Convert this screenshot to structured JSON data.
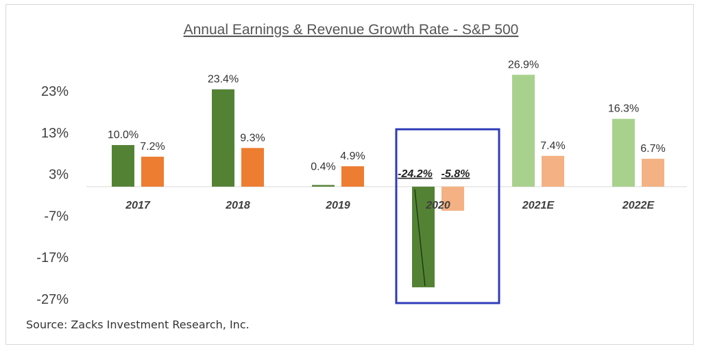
{
  "chart_data": {
    "type": "bar",
    "title": "Annual Earnings & Revenue Growth Rate - S&P 500",
    "categories": [
      "2017",
      "2018",
      "2019",
      "2020",
      "2021E",
      "2022E"
    ],
    "series": [
      {
        "values": [
          10.0,
          23.4,
          0.4,
          -24.2,
          26.9,
          16.3
        ],
        "labels": [
          "10.0%",
          "23.4%",
          "0.4%",
          "-24.2%",
          "26.9%",
          "16.3%"
        ],
        "color": "#548235",
        "estimate_color": "#a9d18e"
      },
      {
        "values": [
          7.2,
          9.3,
          4.9,
          -5.8,
          7.4,
          6.7
        ],
        "labels": [
          "7.2%",
          "9.3%",
          "4.9%",
          "-5.8%",
          "7.4%",
          "6.7%"
        ],
        "color": "#ed7d31",
        "estimate_color": "#f4b183"
      }
    ],
    "estimate_categories": [
      "2021E",
      "2022E"
    ],
    "highlighted_category": "2020",
    "highlight_color": "#2e3bb8",
    "yticks": [
      "23%",
      "13%",
      "3%",
      "-7%",
      "-17%",
      "-27%"
    ],
    "ytick_values": [
      23,
      13,
      3,
      -7,
      -17,
      -27
    ],
    "ylim": [
      -27,
      27
    ],
    "grid": false,
    "legend": "none",
    "source": "Source: Zacks Investment Research, Inc."
  }
}
